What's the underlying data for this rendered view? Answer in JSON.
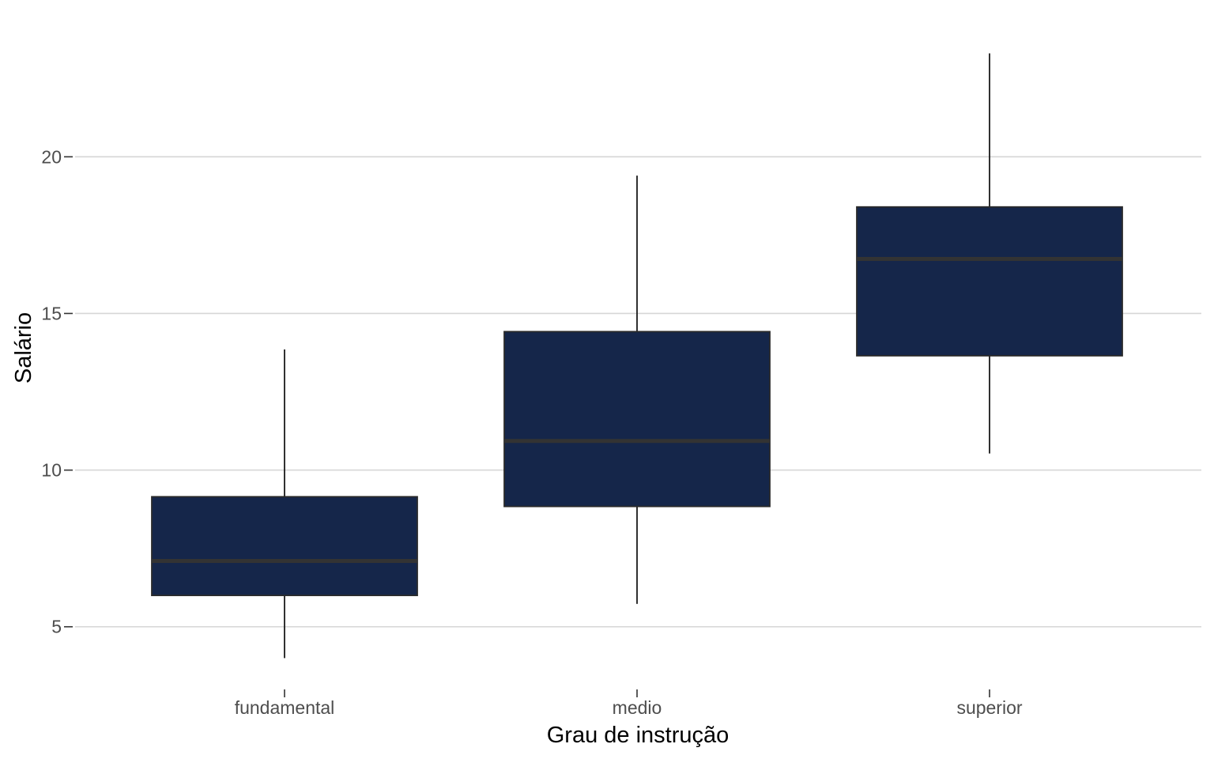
{
  "chart_data": {
    "type": "boxplot",
    "title": "",
    "xlabel": "Grau de instrução",
    "ylabel": "Salário",
    "ylim": [
      3.0,
      24.5
    ],
    "yticks": [
      5,
      10,
      15,
      20
    ],
    "grid": "horizontal major lines",
    "legend": "none",
    "colors": {
      "box_fill": "#15264a",
      "box_border": "#2b2b2b",
      "median": "#333333",
      "whisker": "#1a1a1a",
      "grid": "#d6d6d6"
    },
    "categories": [
      "fundamental",
      "medio",
      "superior"
    ],
    "boxes": [
      {
        "category": "fundamental",
        "min": 4.0,
        "q1": 6.0,
        "median": 7.1,
        "q3": 9.15,
        "max": 13.85
      },
      {
        "category": "medio",
        "min": 5.73,
        "q1": 8.84,
        "median": 10.93,
        "q3": 14.42,
        "max": 19.4
      },
      {
        "category": "superior",
        "min": 10.53,
        "q1": 13.65,
        "median": 16.74,
        "q3": 18.4,
        "max": 23.3
      }
    ]
  }
}
